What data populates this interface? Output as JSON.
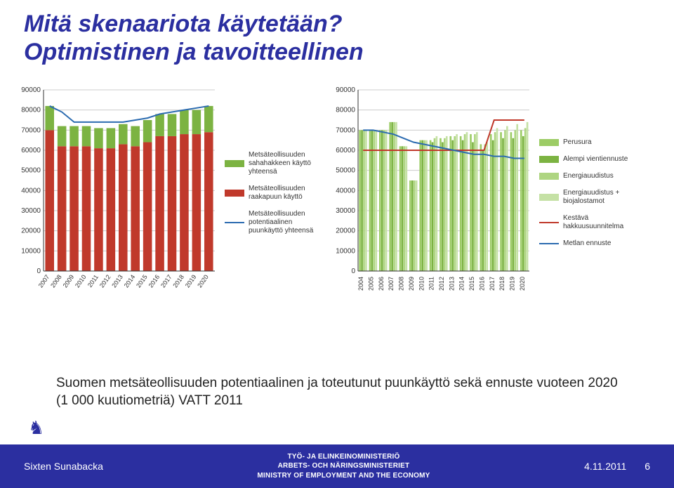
{
  "title_line1": "Mitä skenaariota käytetään?",
  "title_line2": "Optimistinen ja tavoitteellinen",
  "caption_line1": "Suomen metsäteollisuuden potentiaalinen ja toteutunut puunkäyttö sekä ennuste vuoteen 2020",
  "caption_line2": "(1 000 kuutiometriä) VATT 2011",
  "footer": {
    "author": "Sixten Sunabacka",
    "org_line1": "TYÖ- JA ELINKEINOMINISTERIÖ",
    "org_line2": "ARBETS- OCH NÄRINGSMINISTERIET",
    "org_line3": "MINISTRY OF EMPLOYMENT AND THE ECONOMY",
    "date": "4.11.2011",
    "page": "6"
  },
  "chart1": {
    "type": "stacked-bar-with-line",
    "ylim": [
      0,
      90000
    ],
    "ytick_step": 10000,
    "categories": [
      "2007",
      "2008",
      "2009",
      "2010",
      "2011",
      "2012",
      "2013",
      "2014",
      "2015",
      "2016",
      "2017",
      "2018",
      "2019",
      "2020"
    ],
    "series_stack": [
      {
        "key": "raakapuu",
        "label": "Metsäteollisuuden raakapuun käyttö",
        "color": "#c0392b",
        "values": [
          70000,
          62000,
          62000,
          62000,
          61000,
          61000,
          63000,
          62000,
          64000,
          67000,
          67000,
          68000,
          68000,
          69000
        ]
      },
      {
        "key": "sahahake",
        "label": "Metsäteollisuuden sahahakkeen käyttö yhteensä",
        "color": "#7cb342",
        "values": [
          12000,
          10000,
          10000,
          10000,
          10000,
          10000,
          10000,
          10000,
          11000,
          11000,
          11000,
          12000,
          12000,
          13000
        ]
      }
    ],
    "line_series": {
      "key": "potentiaali",
      "label": "Metsäteollisuuden potentiaalinen puunkäyttö yhteensä",
      "color": "#2b6bb0",
      "values": [
        82000,
        79000,
        74000,
        74000,
        74000,
        74000,
        74000,
        75000,
        76000,
        78000,
        79000,
        80000,
        81000,
        82000
      ]
    },
    "grid_color": "#cccccc",
    "background": "#ffffff",
    "bar_width": 0.72
  },
  "chart2": {
    "type": "bar-with-multilines",
    "ylim": [
      0,
      90000
    ],
    "ytick_step": 10000,
    "categories": [
      "2004",
      "2005",
      "2006",
      "2007",
      "2008",
      "2009",
      "2010",
      "2011",
      "2012",
      "2013",
      "2014",
      "2015",
      "2016",
      "2017",
      "2018",
      "2019",
      "2020"
    ],
    "legend": [
      {
        "key": "perusura",
        "label": "Perusura",
        "type": "bar",
        "color": "#9ccc65"
      },
      {
        "key": "alempi",
        "label": "Alempi vientiennuste",
        "type": "bar",
        "color": "#7cb342"
      },
      {
        "key": "energia",
        "label": "Energiauudistus",
        "type": "bar",
        "color": "#aed581"
      },
      {
        "key": "energia_bio",
        "label": "Energiauudistus + biojalostamot",
        "type": "bar",
        "color": "#c5e1a5"
      },
      {
        "key": "kestava",
        "label": "Kestävä hakkuusuunnitelma",
        "type": "line",
        "color": "#c0392b"
      },
      {
        "key": "metlan",
        "label": "Metlan ennuste",
        "type": "line",
        "color": "#2b6bb0"
      }
    ],
    "bars": {
      "perusura": [
        70000,
        70000,
        70000,
        74000,
        62000,
        45000,
        65000,
        65000,
        66000,
        67000,
        67000,
        68000,
        63000,
        68000,
        69000,
        69000,
        70000
      ],
      "alempi": [
        70000,
        70000,
        70000,
        74000,
        62000,
        45000,
        65000,
        64000,
        64000,
        65000,
        65000,
        64000,
        60000,
        65000,
        66000,
        66000,
        67000
      ],
      "energia": [
        70000,
        70000,
        70000,
        74000,
        62000,
        45000,
        65000,
        66000,
        66000,
        67000,
        68000,
        68000,
        63000,
        69000,
        70000,
        70000,
        71000
      ],
      "energia_bio": [
        70000,
        70000,
        70000,
        74000,
        62000,
        45000,
        65000,
        67000,
        67000,
        68000,
        69000,
        69000,
        64000,
        71000,
        72000,
        73000,
        74000
      ]
    },
    "lines": {
      "kestava": [
        60000,
        60000,
        60000,
        60000,
        60000,
        60000,
        60000,
        60000,
        60000,
        60000,
        60000,
        60000,
        60000,
        75000,
        75000,
        75000,
        75000
      ],
      "metlan": [
        70000,
        70000,
        69000,
        68000,
        66000,
        64000,
        63000,
        62000,
        61000,
        60000,
        59000,
        58000,
        58000,
        57000,
        57000,
        56000,
        56000
      ]
    },
    "grid_color": "#cccccc",
    "background": "#ffffff",
    "bar_group_width": 0.82
  }
}
